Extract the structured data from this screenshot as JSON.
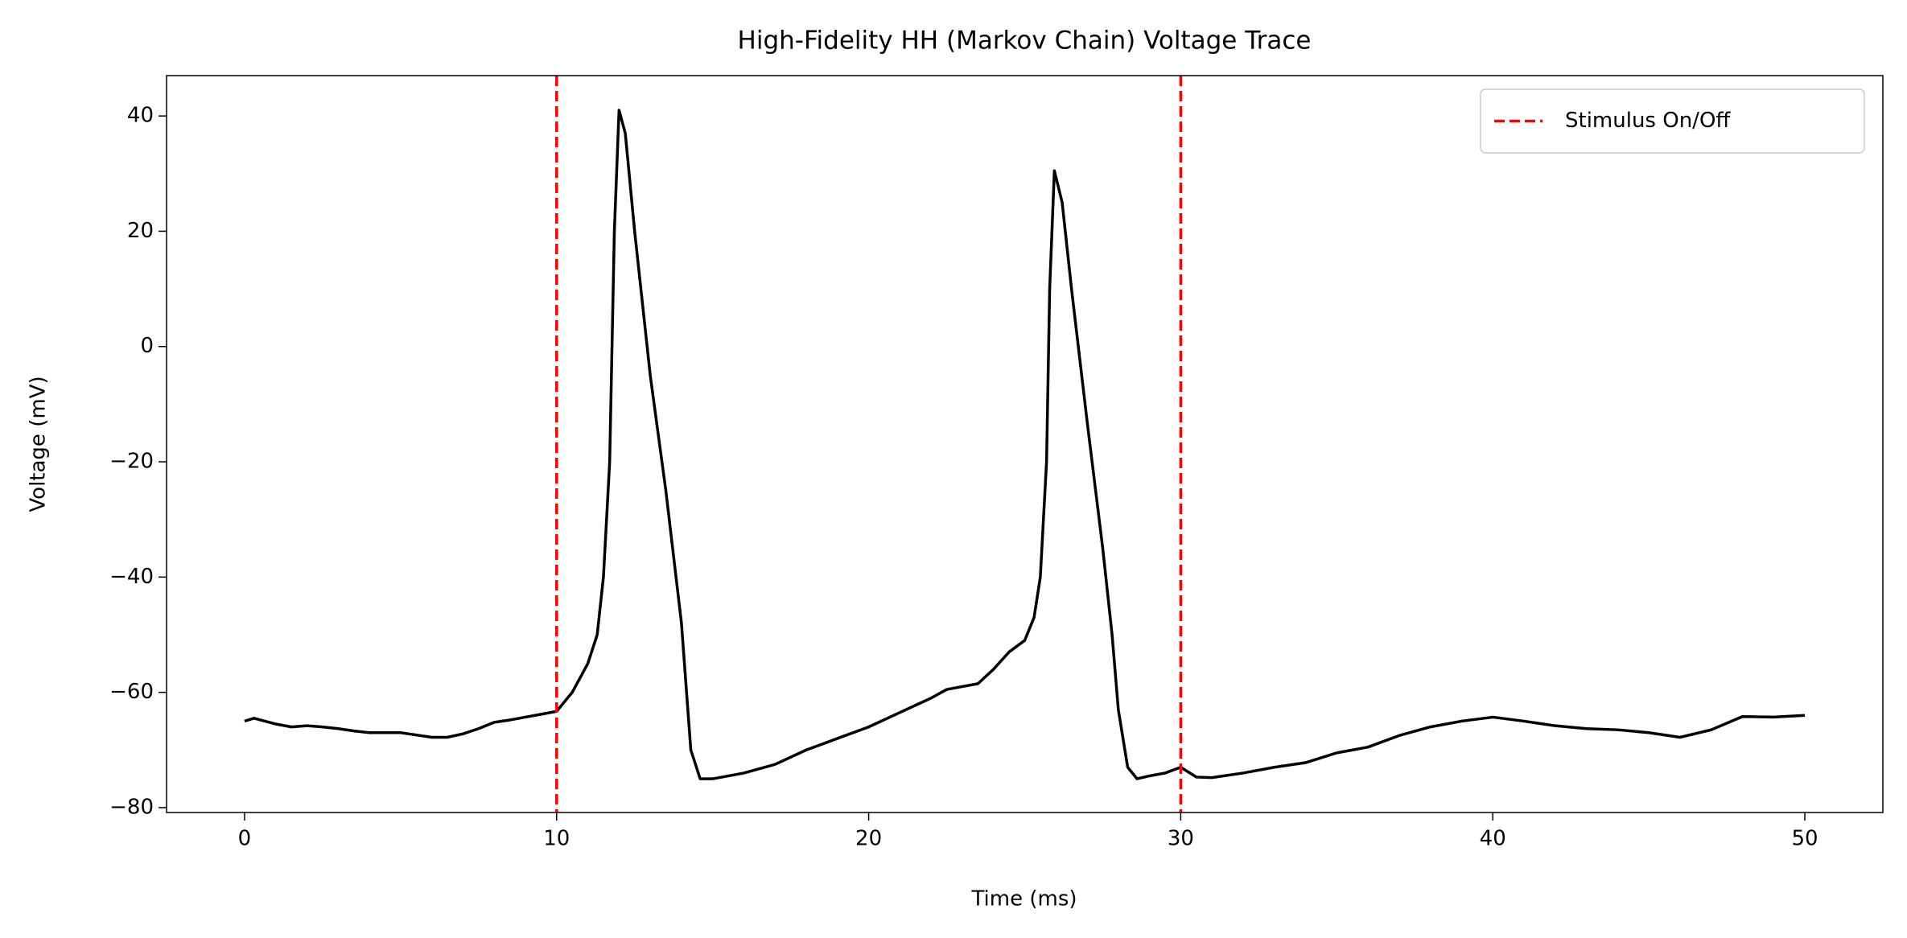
{
  "chart_data": {
    "type": "line",
    "title": "High-Fidelity HH (Markov Chain) Voltage Trace",
    "xlabel": "Time (ms)",
    "ylabel": "Voltage (mV)",
    "x": [
      0,
      0.3,
      1,
      1.5,
      2,
      2.5,
      3,
      3.5,
      4,
      5,
      6,
      6.5,
      7,
      7.5,
      8,
      8.5,
      9,
      9.5,
      10,
      10.5,
      11,
      11.3,
      11.5,
      11.7,
      11.85,
      12,
      12.2,
      12.5,
      13,
      13.5,
      14,
      14.3,
      14.6,
      15,
      16,
      17,
      18,
      19,
      20,
      21,
      22,
      22.5,
      23,
      23.5,
      24,
      24.5,
      25,
      25.3,
      25.5,
      25.7,
      25.8,
      25.95,
      26.2,
      26.5,
      27,
      27.5,
      27.8,
      28,
      28.3,
      28.6,
      29,
      29.5,
      30,
      30.5,
      31,
      32,
      33,
      34,
      35,
      36,
      37,
      38,
      39,
      40,
      41,
      42,
      43,
      44,
      45,
      46,
      47,
      48,
      49,
      50
    ],
    "values": [
      -65,
      -64.5,
      -65.5,
      -66,
      -65.8,
      -66,
      -66.3,
      -66.7,
      -67,
      -67,
      -67.8,
      -67.8,
      -67.2,
      -66.3,
      -65.2,
      -64.8,
      -64.3,
      -63.8,
      -63.3,
      -60,
      -55,
      -50,
      -40,
      -20,
      20,
      41,
      37,
      20,
      -5,
      -25,
      -48,
      -70,
      -75,
      -75,
      -74,
      -72.5,
      -70,
      -68,
      -66,
      -63.5,
      -61,
      -59.5,
      -59,
      -58.5,
      -56,
      -53,
      -51,
      -47,
      -40,
      -20,
      10,
      30.5,
      25,
      10,
      -13,
      -35,
      -50,
      -63,
      -73,
      -75,
      -74.5,
      -74,
      -73,
      -74.7,
      -74.8,
      -74,
      -73,
      -72.2,
      -70.5,
      -69.5,
      -67.5,
      -66,
      -65,
      -64.3,
      -65,
      -65.8,
      -66.3,
      -66.5,
      -67,
      -67.8,
      -66.5,
      -64.2,
      -64.3,
      -64
    ],
    "color": "#000000",
    "vlines": {
      "name": "Stimulus On/Off",
      "x": [
        10,
        30
      ],
      "color": "#ff0000"
    },
    "legend": "upper right",
    "xlim": [
      -2.5,
      52.5
    ],
    "ylim": [
      -80.85,
      47
    ],
    "xticks": [
      0,
      10,
      20,
      30,
      40,
      50
    ],
    "yticks": [
      {
        "value": -80,
        "label": "−80"
      },
      {
        "value": -60,
        "label": "−60"
      },
      {
        "value": -40,
        "label": "−40"
      },
      {
        "value": -20,
        "label": "−20"
      },
      0,
      20,
      40
    ]
  }
}
